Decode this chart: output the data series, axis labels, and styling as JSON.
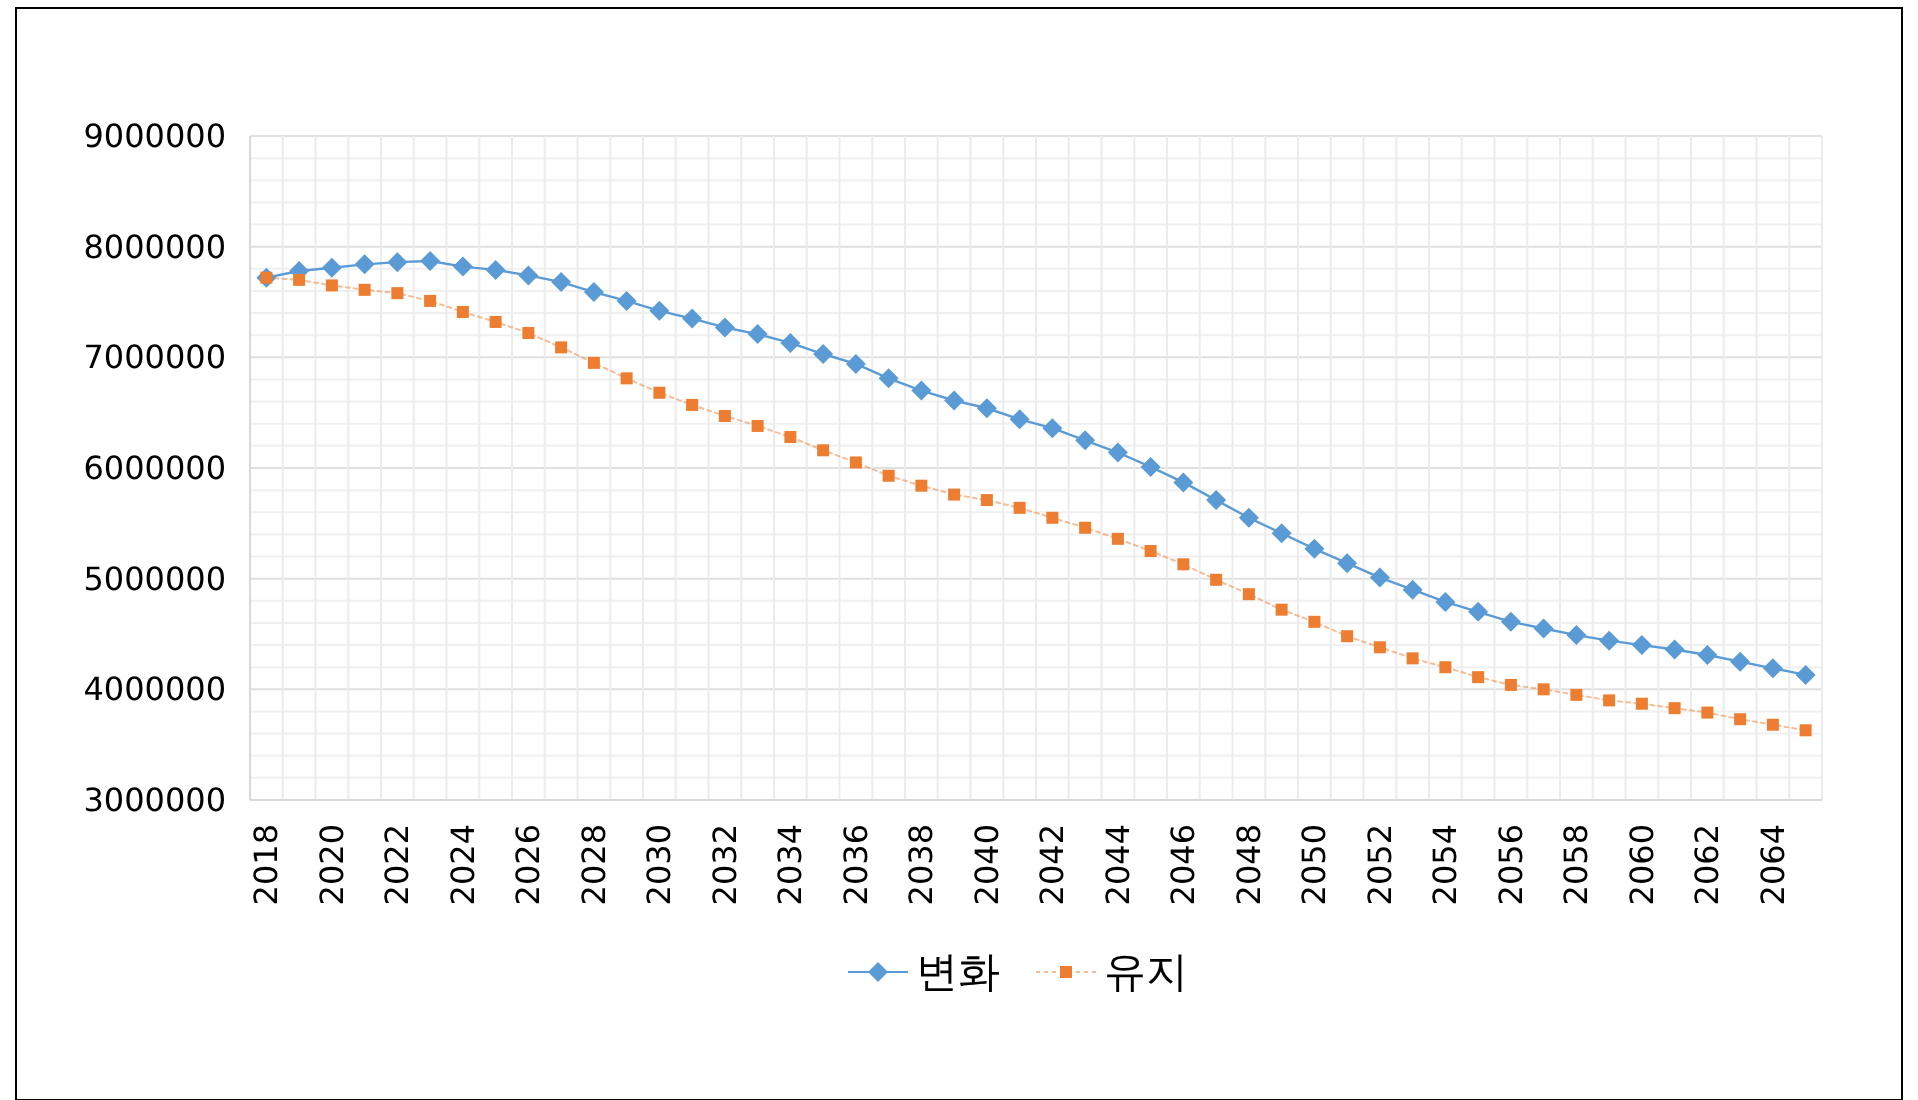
{
  "chart_data": {
    "type": "line",
    "categories": [
      "2018",
      null,
      "2020",
      null,
      "2022",
      null,
      "2024",
      null,
      "2026",
      null,
      "2028",
      null,
      "2030",
      null,
      "2032",
      null,
      "2034",
      null,
      "2036",
      null,
      "2038",
      null,
      "2040",
      null,
      "2042",
      null,
      "2044",
      null,
      "2046",
      null,
      "2048",
      null,
      "2050",
      null,
      "2052",
      null,
      "2054",
      null,
      "2056",
      null,
      "2058",
      null,
      "2060",
      null,
      "2062",
      null,
      "2064",
      null
    ],
    "series": [
      {
        "name": "변화",
        "color": "#5b9bd5",
        "marker": "diamond",
        "line_style": "solid",
        "values": [
          7720000,
          7780000,
          7810000,
          7840000,
          7860000,
          7870000,
          7820000,
          7790000,
          7740000,
          7680000,
          7590000,
          7510000,
          7420000,
          7350000,
          7270000,
          7210000,
          7130000,
          7030000,
          6940000,
          6810000,
          6700000,
          6610000,
          6540000,
          6440000,
          6360000,
          6250000,
          6140000,
          6010000,
          5870000,
          5710000,
          5550000,
          5410000,
          5270000,
          5140000,
          5010000,
          4900000,
          4790000,
          4700000,
          4610000,
          4550000,
          4490000,
          4440000,
          4400000,
          4360000,
          4310000,
          4250000,
          4190000,
          4130000
        ]
      },
      {
        "name": "유지",
        "color": "#ed7d31",
        "marker": "square",
        "line_style": "dotted",
        "values": [
          7720000,
          7700000,
          7650000,
          7610000,
          7580000,
          7510000,
          7410000,
          7320000,
          7220000,
          7090000,
          6950000,
          6810000,
          6680000,
          6570000,
          6470000,
          6380000,
          6280000,
          6160000,
          6050000,
          5930000,
          5840000,
          5760000,
          5710000,
          5640000,
          5550000,
          5460000,
          5360000,
          5250000,
          5130000,
          4990000,
          4860000,
          4720000,
          4610000,
          4480000,
          4380000,
          4280000,
          4200000,
          4110000,
          4040000,
          4000000,
          3950000,
          3900000,
          3870000,
          3830000,
          3790000,
          3730000,
          3680000,
          3630000
        ]
      }
    ],
    "ylim": [
      3000000,
      9000000
    ],
    "yticks": [
      3000000,
      4000000,
      5000000,
      6000000,
      7000000,
      8000000,
      9000000
    ],
    "grid": true,
    "legend": "bottom"
  }
}
